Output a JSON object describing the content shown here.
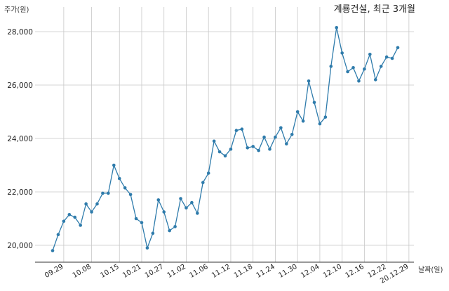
{
  "chart_data": {
    "type": "line",
    "title": "계룡건설, 최근 3개월",
    "ylabel": "주가(원)",
    "xlabel": "날짜(일)",
    "ylim": [
      19450,
      28600
    ],
    "yticks": [
      20000,
      22000,
      24000,
      26000,
      28000
    ],
    "ytick_labels": [
      "20,000",
      "22,000",
      "24,000",
      "26,000",
      "28,000"
    ],
    "xtick_labels": [
      "09.29",
      "10.08",
      "10.15",
      "10.21",
      "10.27",
      "11.02",
      "11.06",
      "11.12",
      "11.18",
      "11.24",
      "11.30",
      "12.04",
      "12.10",
      "12.16",
      "12.22",
      "20.12.29"
    ],
    "xtick_index": [
      2,
      7,
      12,
      16,
      20,
      24,
      28,
      32,
      36,
      40,
      44,
      48,
      52,
      56,
      60,
      64
    ],
    "grid": true,
    "color": "#2e7bab",
    "values": [
      19800,
      20400,
      20900,
      21150,
      21050,
      20750,
      21550,
      21250,
      21550,
      21950,
      21950,
      23000,
      22500,
      22150,
      21900,
      21000,
      20850,
      19900,
      20450,
      21700,
      21250,
      20550,
      20700,
      21750,
      21400,
      21600,
      21200,
      22350,
      22700,
      23900,
      23500,
      23350,
      23600,
      24300,
      24350,
      23650,
      23700,
      23550,
      24050,
      23600,
      24050,
      24400,
      23800,
      24150,
      25000,
      24650,
      26150,
      25350,
      24550,
      24800,
      26700,
      28150,
      27200,
      26500,
      26650,
      26150,
      26600,
      27150,
      26200,
      26700,
      27050,
      27000,
      27400
    ]
  }
}
